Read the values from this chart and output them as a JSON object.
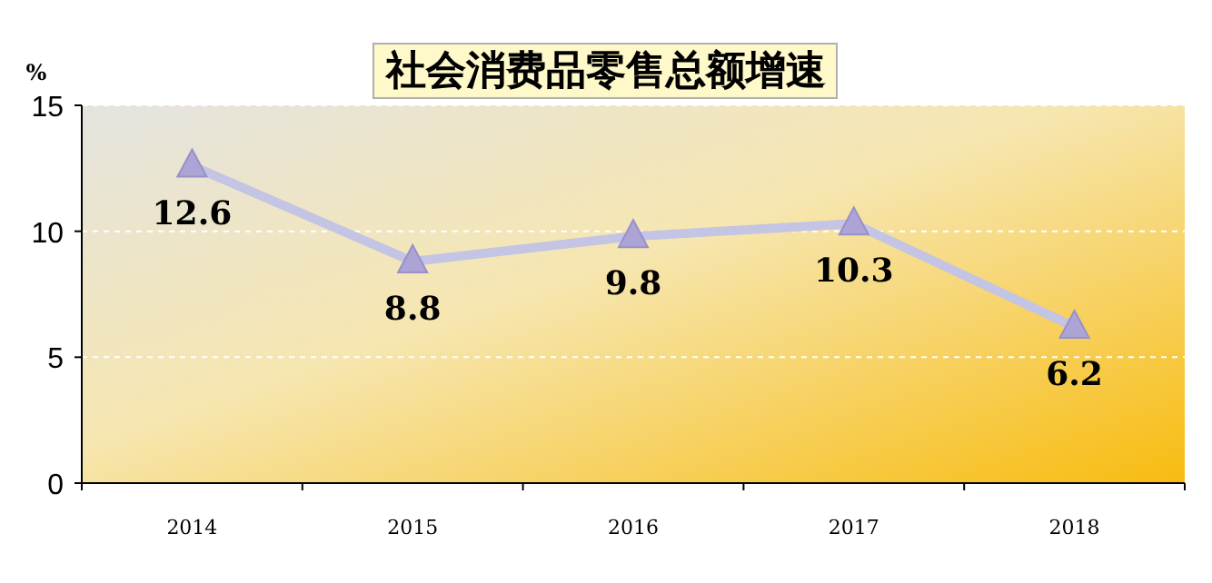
{
  "chart_data": {
    "type": "line",
    "title": "社会消费品零售总额增速",
    "ylabel": "%",
    "categories": [
      "2014",
      "2015",
      "2016",
      "2017",
      "2018"
    ],
    "values": [
      12.6,
      8.8,
      9.8,
      10.3,
      6.2
    ],
    "color": "#c4c4e4",
    "ylim": [
      0,
      15
    ],
    "yticks": [
      0,
      5,
      10,
      15
    ],
    "grid": "y",
    "marker": "triangle",
    "data_labels": true
  }
}
